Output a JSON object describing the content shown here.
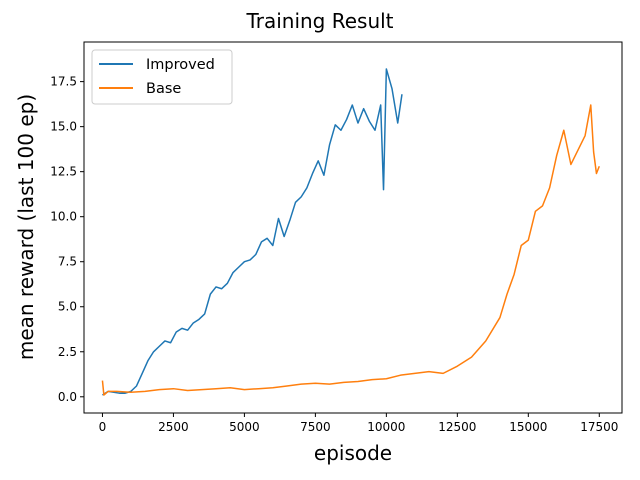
{
  "chart_data": {
    "type": "line",
    "title": "Training Result",
    "xlabel": "episode",
    "ylabel": "mean reward (last 100 ep)",
    "xlim": [
      -650,
      18300
    ],
    "ylim": [
      -0.9,
      19.7
    ],
    "xticks": [
      0,
      2500,
      5000,
      7500,
      10000,
      12500,
      15000,
      17500
    ],
    "xtick_labels": [
      "0",
      "2500",
      "5000",
      "7500",
      "10000",
      "12500",
      "15000",
      "17500"
    ],
    "yticks": [
      0.0,
      2.5,
      5.0,
      7.5,
      10.0,
      12.5,
      15.0,
      17.5
    ],
    "ytick_labels": [
      "0.0",
      "2.5",
      "5.0",
      "7.5",
      "10.0",
      "12.5",
      "15.0",
      "17.5"
    ],
    "grid": false,
    "legend": "top-left",
    "series": [
      {
        "name": "Improved",
        "color": "#1f77b4",
        "x": [
          0,
          200,
          400,
          600,
          800,
          1000,
          1200,
          1400,
          1600,
          1800,
          2000,
          2200,
          2400,
          2600,
          2800,
          3000,
          3200,
          3400,
          3600,
          3800,
          4000,
          4200,
          4400,
          4600,
          4800,
          5000,
          5200,
          5400,
          5600,
          5800,
          6000,
          6200,
          6400,
          6600,
          6800,
          7000,
          7200,
          7400,
          7600,
          7800,
          8000,
          8200,
          8400,
          8600,
          8800,
          9000,
          9200,
          9400,
          9600,
          9800,
          9900,
          10000,
          10200,
          10400,
          10550
        ],
        "values": [
          0.1,
          0.3,
          0.25,
          0.2,
          0.2,
          0.3,
          0.6,
          1.3,
          2.0,
          2.5,
          2.8,
          3.1,
          3.0,
          3.6,
          3.8,
          3.7,
          4.1,
          4.3,
          4.6,
          5.7,
          6.1,
          6.0,
          6.3,
          6.9,
          7.2,
          7.5,
          7.6,
          7.9,
          8.6,
          8.8,
          8.4,
          9.9,
          8.9,
          9.8,
          10.8,
          11.1,
          11.6,
          12.4,
          13.1,
          12.3,
          14.0,
          15.1,
          14.8,
          15.4,
          16.2,
          15.2,
          16.0,
          15.3,
          14.8,
          16.2,
          11.5,
          18.2,
          17.1,
          15.2,
          16.8
        ]
      },
      {
        "name": "Base",
        "color": "#ff7f0e",
        "x": [
          0,
          50,
          200,
          500,
          1000,
          1500,
          2000,
          2500,
          3000,
          3500,
          4000,
          4500,
          5000,
          5500,
          6000,
          6500,
          7000,
          7500,
          8000,
          8500,
          9000,
          9500,
          10000,
          10500,
          11000,
          11500,
          12000,
          12500,
          13000,
          13500,
          14000,
          14250,
          14500,
          14750,
          15000,
          15250,
          15500,
          15750,
          16000,
          16250,
          16500,
          16750,
          17000,
          17200,
          17300,
          17400,
          17500
        ],
        "values": [
          0.9,
          0.1,
          0.3,
          0.3,
          0.25,
          0.3,
          0.4,
          0.45,
          0.35,
          0.4,
          0.45,
          0.5,
          0.4,
          0.45,
          0.5,
          0.6,
          0.7,
          0.75,
          0.7,
          0.8,
          0.85,
          0.95,
          1.0,
          1.2,
          1.3,
          1.4,
          1.3,
          1.7,
          2.2,
          3.1,
          4.4,
          5.7,
          6.8,
          8.4,
          8.7,
          10.3,
          10.6,
          11.6,
          13.4,
          14.8,
          12.9,
          13.7,
          14.5,
          16.2,
          13.6,
          12.4,
          12.8
        ]
      }
    ]
  }
}
